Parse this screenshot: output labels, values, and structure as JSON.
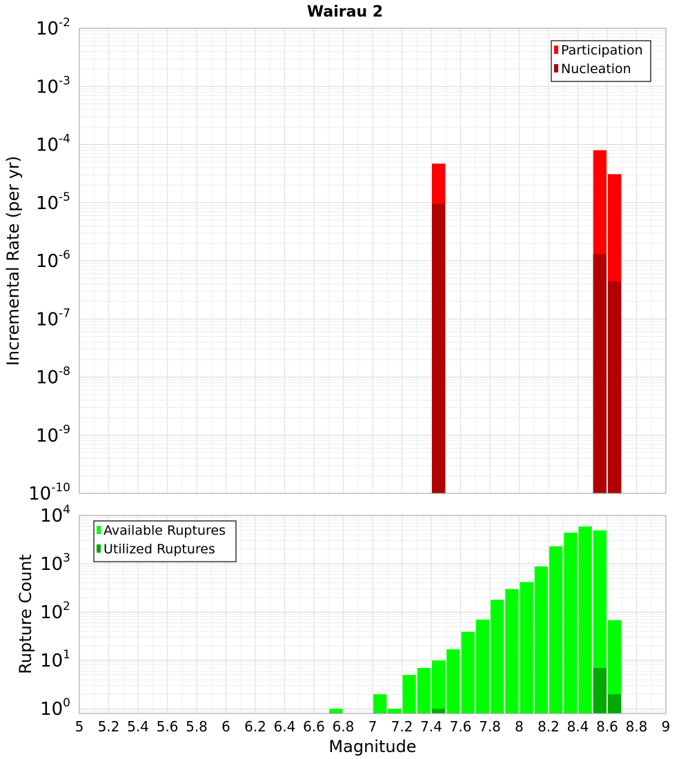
{
  "chart_data": [
    {
      "type": "bar",
      "title": "Wairau 2",
      "xlabel": "",
      "ylabel": "Incremental Rate (per yr)",
      "yscale": "log",
      "ylim": [
        1e-10,
        0.01
      ],
      "xlim": [
        5,
        9
      ],
      "grid": true,
      "legend_position": "top-right",
      "y_tick_labels": [
        {
          "base": "10",
          "exp": "-10",
          "value": 1e-10
        },
        {
          "base": "10",
          "exp": "-9",
          "value": 1e-09
        },
        {
          "base": "10",
          "exp": "-8",
          "value": 1e-08
        },
        {
          "base": "10",
          "exp": "-7",
          "value": 1e-07
        },
        {
          "base": "10",
          "exp": "-6",
          "value": 1e-06
        },
        {
          "base": "10",
          "exp": "-5",
          "value": 1e-05
        },
        {
          "base": "10",
          "exp": "-4",
          "value": 0.0001
        },
        {
          "base": "10",
          "exp": "-3",
          "value": 0.001
        },
        {
          "base": "10",
          "exp": "-2",
          "value": 0.01
        }
      ],
      "series": [
        {
          "name": "Participation",
          "color": "#ff0000",
          "x": [
            7.45,
            8.55,
            8.65
          ],
          "values": [
            4.7e-05,
            8e-05,
            3.1e-05
          ]
        },
        {
          "name": "Nucleation",
          "color": "#b00000",
          "x": [
            7.45,
            8.55,
            8.65
          ],
          "values": [
            9.5e-06,
            1.3e-06,
            4.4e-07
          ]
        }
      ]
    },
    {
      "type": "bar",
      "title": "",
      "xlabel": "Magnitude",
      "ylabel": "Rupture Count",
      "yscale": "log",
      "ylim": [
        0.8,
        10000
      ],
      "xlim": [
        5,
        9
      ],
      "grid": true,
      "legend_position": "top-left",
      "x_tick_labels": [
        "5",
        "5.2",
        "5.4",
        "5.6",
        "5.8",
        "6",
        "6.2",
        "6.4",
        "6.6",
        "6.8",
        "7",
        "7.2",
        "7.4",
        "7.6",
        "7.8",
        "8",
        "8.2",
        "8.4",
        "8.6",
        "8.8",
        "9"
      ],
      "y_tick_labels": [
        {
          "base": "10",
          "exp": "0",
          "value": 1
        },
        {
          "base": "10",
          "exp": "1",
          "value": 10
        },
        {
          "base": "10",
          "exp": "2",
          "value": 100
        },
        {
          "base": "10",
          "exp": "3",
          "value": 1000
        },
        {
          "base": "10",
          "exp": "4",
          "value": 10000
        }
      ],
      "series": [
        {
          "name": "Available Ruptures",
          "color": "#00ff00",
          "x": [
            6.75,
            7.05,
            7.15,
            7.25,
            7.35,
            7.45,
            7.55,
            7.65,
            7.75,
            7.85,
            7.95,
            8.05,
            8.15,
            8.25,
            8.35,
            8.45,
            8.55,
            8.65
          ],
          "values": [
            1,
            2,
            1,
            5,
            7,
            10,
            17,
            39,
            70,
            180,
            300,
            420,
            880,
            2300,
            4400,
            5900,
            4900,
            68
          ]
        },
        {
          "name": "Utilized Ruptures",
          "color": "#00aa00",
          "x": [
            7.45,
            8.55,
            8.65
          ],
          "values": [
            1,
            7,
            2
          ]
        }
      ]
    }
  ]
}
